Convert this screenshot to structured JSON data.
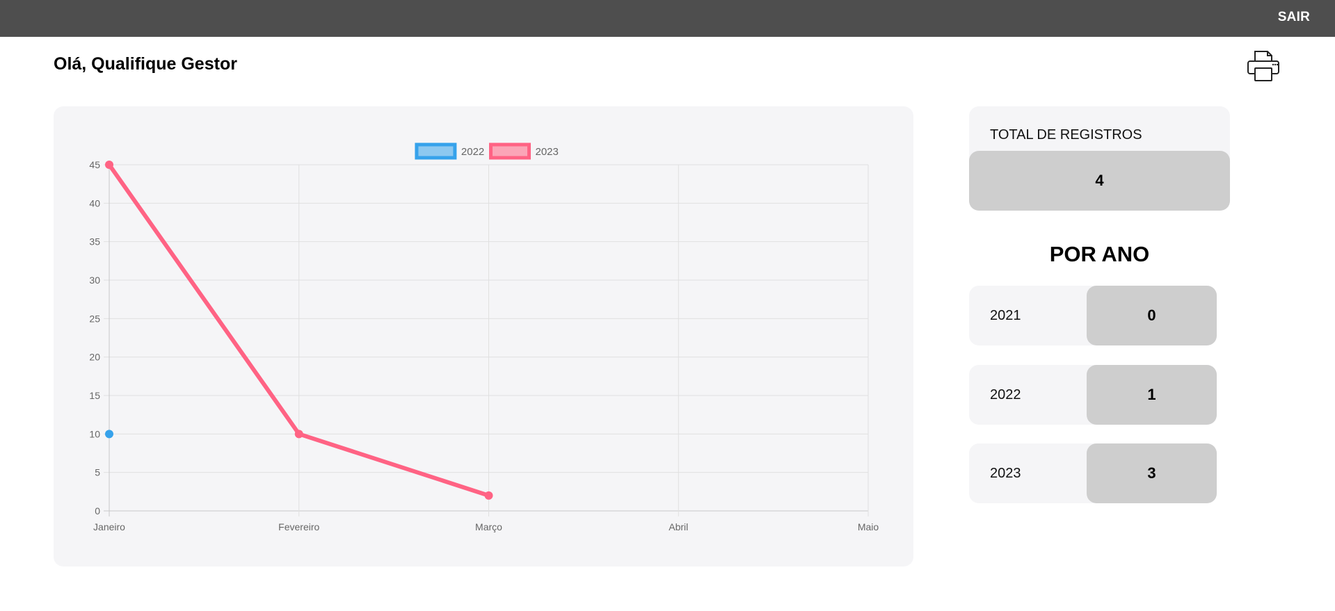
{
  "header": {
    "logout_label": "SAIR"
  },
  "greeting": "Olá, Qualifique Gestor",
  "icons": {
    "print": "printer-icon"
  },
  "chart_data": {
    "type": "line",
    "categories": [
      "Janeiro",
      "Fevereiro",
      "Março",
      "Abril",
      "Maio"
    ],
    "series": [
      {
        "name": "2022",
        "color": "#36a2eb",
        "values": [
          10,
          null,
          null,
          null,
          null
        ]
      },
      {
        "name": "2023",
        "color": "#ff6384",
        "values": [
          45,
          10,
          2,
          null,
          null
        ]
      }
    ],
    "ylim": [
      0,
      45
    ],
    "yticks": [
      0,
      5,
      10,
      15,
      20,
      25,
      30,
      35,
      40,
      45
    ],
    "grid": true,
    "legend": "top-center"
  },
  "totals": {
    "label": "TOTAL DE REGISTROS",
    "value": "4"
  },
  "by_year": {
    "title": "POR ANO",
    "rows": [
      {
        "year": "2021",
        "count": "0"
      },
      {
        "year": "2022",
        "count": "1"
      },
      {
        "year": "2023",
        "count": "3"
      }
    ]
  }
}
